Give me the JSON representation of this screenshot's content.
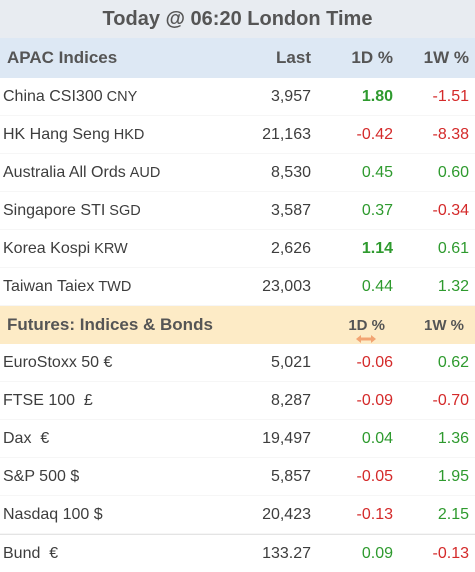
{
  "title": "Today @ 06:20 London Time",
  "apac": {
    "header": {
      "label": "APAC Indices",
      "last": "Last",
      "d1": "1D %",
      "w1": "1W %"
    },
    "rows": [
      {
        "name": "China CSI300",
        "currency": "CNY",
        "last": "3,957",
        "d1": "1.80",
        "w1": "-1.51"
      },
      {
        "name": "HK Hang Seng",
        "currency": "HKD",
        "last": "21,163",
        "d1": "-0.42",
        "w1": "-8.38"
      },
      {
        "name": "Australia All Ords",
        "currency": "AUD",
        "last": "8,530",
        "d1": "0.45",
        "w1": "0.60"
      },
      {
        "name": "Singapore STI",
        "currency": "SGD",
        "last": "3,587",
        "d1": "0.37",
        "w1": "-0.34"
      },
      {
        "name": "Korea Kospi",
        "currency": "KRW",
        "last": "2,626",
        "d1": "1.14",
        "w1": "0.61"
      },
      {
        "name": "Taiwan Taiex",
        "currency": "TWD",
        "last": "23,003",
        "d1": "0.44",
        "w1": "1.32"
      }
    ]
  },
  "futures": {
    "header": {
      "label": "Futures: Indices & Bonds",
      "d1": "1D %",
      "w1": "1W %"
    },
    "rows": [
      {
        "name": "EuroStoxx 50 €",
        "last": "5,021",
        "d1": "-0.06",
        "w1": "0.62"
      },
      {
        "name": "FTSE 100  £",
        "last": "8,287",
        "d1": "-0.09",
        "w1": "-0.70"
      },
      {
        "name": "Dax  €",
        "last": "19,497",
        "d1": "0.04",
        "w1": "1.36"
      },
      {
        "name": "S&P 500 $",
        "last": "5,857",
        "d1": "-0.05",
        "w1": "1.95"
      },
      {
        "name": "Nasdaq 100 $",
        "last": "20,423",
        "d1": "-0.13",
        "w1": "2.15"
      },
      {
        "name": "Bund  €",
        "last": "133.27",
        "d1": "0.09",
        "w1": "-0.13"
      }
    ]
  },
  "colors": {
    "positive": "#2e9a2e",
    "negative": "#d42a2a",
    "apac_header": "#dde8f4",
    "futures_header": "#fdebc6"
  },
  "icons": {
    "column_resize": "horizontal-double-arrow-icon"
  }
}
